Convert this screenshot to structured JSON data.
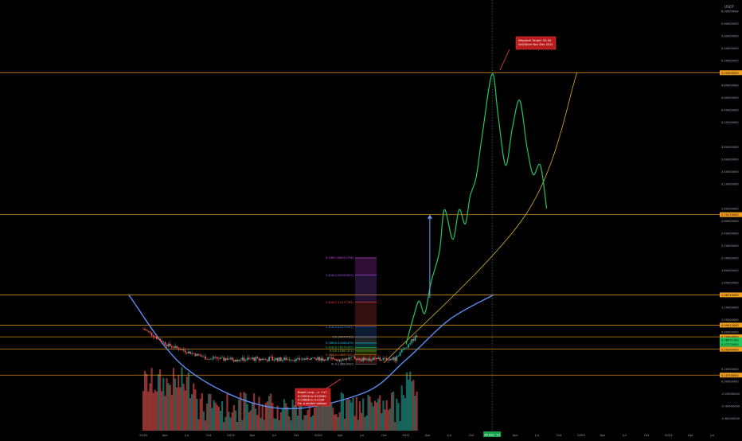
{
  "chart_data": {
    "type": "candlestick",
    "title": "",
    "unit": "USDT",
    "ylim": [
      -0.8,
      6.1
    ],
    "xlim": [
      "2018-01-01",
      "2024-08-01"
    ],
    "grid": false,
    "y_ticks": [
      "6.00000000",
      "5.80000000",
      "5.60000000",
      "5.40000000",
      "5.20000000",
      "4.80000000",
      "4.60000000",
      "4.40000000",
      "4.20000000",
      "3.80000000",
      "3.60000000",
      "3.40000000",
      "3.20000000",
      "2.80000000",
      "2.60000000",
      "2.40000000",
      "2.20000000",
      "2.00000000",
      "1.80000000",
      "1.60000000",
      "1.20000000",
      "1.00000000",
      "0.80000000",
      "0.60000000",
      "0.20000000",
      "0.00000000",
      "-0.20000000",
      "-0.40000000",
      "-0.60000000"
    ],
    "x_ticks": [
      {
        "label": "2018",
        "date": "2018-01-01"
      },
      {
        "label": "Apr",
        "date": "2018-04-01"
      },
      {
        "label": "Jul",
        "date": "2018-07-01"
      },
      {
        "label": "Oct",
        "date": "2018-10-01"
      },
      {
        "label": "2019",
        "date": "2019-01-01"
      },
      {
        "label": "Apr",
        "date": "2019-04-01"
      },
      {
        "label": "Jul",
        "date": "2019-07-01"
      },
      {
        "label": "Oct",
        "date": "2019-10-01"
      },
      {
        "label": "2020",
        "date": "2020-01-01"
      },
      {
        "label": "Apr",
        "date": "2020-04-01"
      },
      {
        "label": "Jul",
        "date": "2020-07-01"
      },
      {
        "label": "Oct",
        "date": "2020-10-01"
      },
      {
        "label": "2021",
        "date": "2021-01-01"
      },
      {
        "label": "Apr",
        "date": "2021-04-01"
      },
      {
        "label": "Jul",
        "date": "2021-07-01"
      },
      {
        "label": "Oct",
        "date": "2021-10-01"
      },
      {
        "label": "Apr",
        "date": "2022-04-01"
      },
      {
        "label": "Jul",
        "date": "2022-07-01"
      },
      {
        "label": "Oct",
        "date": "2022-10-01"
      },
      {
        "label": "2023",
        "date": "2023-01-01"
      },
      {
        "label": "Apr",
        "date": "2023-04-01"
      },
      {
        "label": "Jul",
        "date": "2023-07-01"
      },
      {
        "label": "Oct",
        "date": "2023-10-01"
      },
      {
        "label": "2024",
        "date": "2024-01-01"
      },
      {
        "label": "Apr",
        "date": "2024-04-01"
      },
      {
        "label": "Jul",
        "date": "2024-07-01"
      }
    ],
    "x_marker": {
      "label": "26 Dec '21",
      "date": "2021-12-26"
    },
    "horizontal_levels": [
      {
        "value": 5.0,
        "label": "5.00000000",
        "color": "#f0a020",
        "text_color": "#000000"
      },
      {
        "value": 2.7,
        "label": "2.70170000",
        "color": "#f0a020",
        "text_color": "#000000"
      },
      {
        "value": 1.4,
        "label": "1.38725000",
        "color": "#f0a020",
        "text_color": "#000000"
      },
      {
        "value": 0.91,
        "label": "0.90412000",
        "color": "#f0a020",
        "text_color": "#000000"
      },
      {
        "value": 0.72,
        "label": "0.70000000",
        "color": "#f0a020",
        "text_color": "#000000"
      },
      {
        "value": 0.52,
        "label": "0.50200000",
        "color": "#f0a020",
        "text_color": "#000000"
      },
      {
        "value": 0.1,
        "label": "0.10700000",
        "color": "#f0a020",
        "text_color": "#000000"
      }
    ],
    "price_labels": [
      {
        "value": 0.67,
        "label": "0.56071000",
        "color": "#22c55e"
      },
      {
        "value": 0.6,
        "label": "0.57270000",
        "color": "#22c55e"
      }
    ],
    "fib_levels": [
      {
        "value": 2.0,
        "label": "4.236(1.88057276)",
        "color": "#d946ef"
      },
      {
        "value": 1.72,
        "label": "3.618(1.60525629)",
        "color": "#a855f7"
      },
      {
        "value": 1.28,
        "label": "2.618(1.12377785)",
        "color": "#ef4444"
      },
      {
        "value": 0.88,
        "label": "1.618(0.64229941)",
        "color": "#3b82f6"
      },
      {
        "value": 0.72,
        "label": "1(0.34470733)",
        "color": "#9ca3af"
      },
      {
        "value": 0.62,
        "label": "0.786(0.24164479)",
        "color": "#22d3ee"
      },
      {
        "value": 0.55,
        "label": "0.618(0.16075429)",
        "color": "#22c55e"
      },
      {
        "value": 0.49,
        "label": "0.5(0.10387371)",
        "color": "#84cc16"
      },
      {
        "value": 0.43,
        "label": "0.382(0.04699312)",
        "color": "#f97316"
      },
      {
        "value": 0.36,
        "label": "0.236(-0.02337781)",
        "color": "#ef4444"
      },
      {
        "value": 0.28,
        "label": "0(-0.13680000)",
        "color": "#9ca3af"
      }
    ],
    "annotations": [
      {
        "label": "Megabull Target: $5.00",
        "sublabel": "Sell/Short Nov-Dec 2021"
      },
      {
        "label": "Bagel Long ---> +x7",
        "lines": [
          "0.03500 to 0.03180",
          "0.03668 to 0.0336",
          "For a double bottom"
        ]
      }
    ],
    "cup_curve": [
      {
        "x": "2017-11-01",
        "y": 1.4
      },
      {
        "x": "2018-07-01",
        "y": 0.2
      },
      {
        "x": "2019-07-01",
        "y": -0.43
      },
      {
        "x": "2020-07-01",
        "y": -0.2
      },
      {
        "x": "2021-01-01",
        "y": 0.35
      },
      {
        "x": "2021-07-01",
        "y": 1.0
      },
      {
        "x": "2022-01-01",
        "y": 1.4
      }
    ],
    "trend_line": [
      {
        "x": "2020-10-01",
        "y": 0.3
      },
      {
        "x": "2022-05-15",
        "y": 2.7
      },
      {
        "x": "2022-12-15",
        "y": 5.0
      }
    ],
    "projection_path": [
      {
        "x": "2021-01-01",
        "y": 0.6
      },
      {
        "x": "2021-02-05",
        "y": 1.1
      },
      {
        "x": "2021-02-25",
        "y": 1.3
      },
      {
        "x": "2021-03-20",
        "y": 1.1
      },
      {
        "x": "2021-04-15",
        "y": 1.6
      },
      {
        "x": "2021-05-20",
        "y": 2.1
      },
      {
        "x": "2021-06-10",
        "y": 2.78
      },
      {
        "x": "2021-07-15",
        "y": 2.3
      },
      {
        "x": "2021-08-10",
        "y": 2.78
      },
      {
        "x": "2021-09-05",
        "y": 2.55
      },
      {
        "x": "2021-09-25",
        "y": 3.0
      },
      {
        "x": "2021-10-20",
        "y": 3.3
      },
      {
        "x": "2021-11-15",
        "y": 4.0
      },
      {
        "x": "2021-12-26",
        "y": 4.98
      },
      {
        "x": "2022-01-20",
        "y": 4.3
      },
      {
        "x": "2022-02-20",
        "y": 3.5
      },
      {
        "x": "2022-03-20",
        "y": 4.1
      },
      {
        "x": "2022-04-20",
        "y": 4.55
      },
      {
        "x": "2022-05-20",
        "y": 3.8
      },
      {
        "x": "2022-06-15",
        "y": 3.35
      },
      {
        "x": "2022-07-15",
        "y": 3.5
      },
      {
        "x": "2022-08-10",
        "y": 2.8
      }
    ],
    "arrow": {
      "from": {
        "x": "2021-04-10",
        "y": 1.35
      },
      "to": {
        "x": "2021-04-10",
        "y": 2.7
      }
    }
  }
}
